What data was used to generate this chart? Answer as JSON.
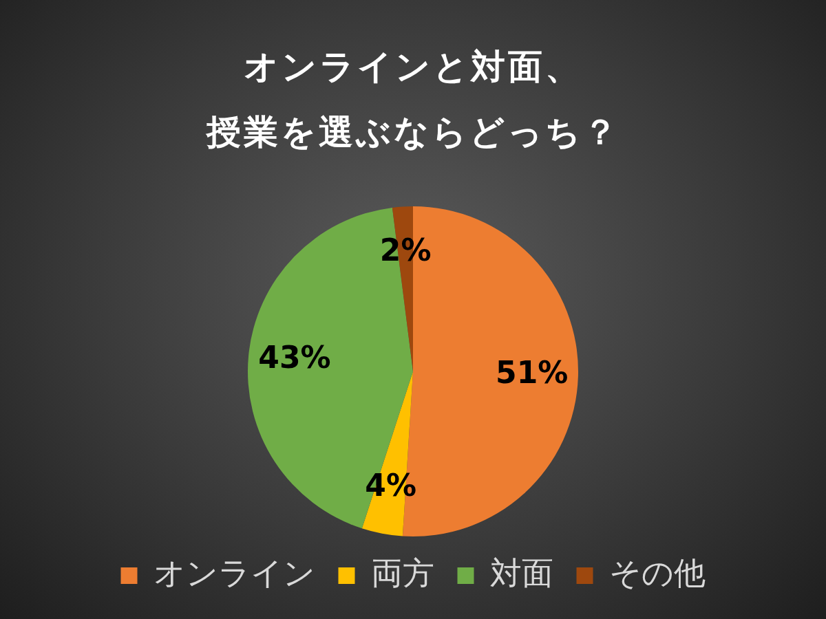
{
  "chart_data": {
    "type": "pie",
    "title": "オンラインと対面、授業を選ぶならどっち？",
    "categories": [
      "オンライン",
      "両方",
      "対面",
      "その他"
    ],
    "values": [
      51,
      4,
      43,
      2
    ],
    "colors": [
      "#ed7d31",
      "#ffc000",
      "#70ad47",
      "#9e480e"
    ],
    "value_labels": [
      "51%",
      "4%",
      "43%",
      "2%"
    ],
    "legend": "bottom"
  }
}
